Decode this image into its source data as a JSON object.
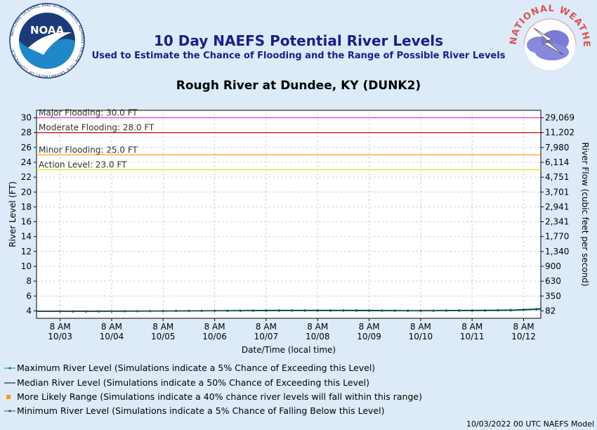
{
  "header": {
    "title": "10 Day NAEFS Potential River Levels",
    "subtitle": "Used to Estimate the Chance of Flooding and the Range of Possible River Levels",
    "station": "Rough River at Dundee, KY (DUNK2)",
    "noaa_logo_text": "NOAA",
    "noaa_ring_text": "NATIONAL OCEANIC AND ATMOSPHERIC ADMINISTRATION · U.S. DEPARTMENT OF COMMERCE",
    "nws_ring_text": "NATIONAL WEATHER SERVICE"
  },
  "colors": {
    "major": "#cc33cc",
    "moderate": "#cc0000",
    "minor": "#ff9900",
    "action": "#e6e600",
    "max_series": "#008b8b",
    "median_series": "#000000",
    "range_series": "#ff9900",
    "min_series": "#1f5a7a"
  },
  "chart_data": {
    "type": "line",
    "xlabel": "Date/Time (local time)",
    "ylabel": "River Level (FT)",
    "y2label": "River Flow (cubic feet per second)",
    "ylim": [
      3,
      31
    ],
    "yticks": [
      4,
      6,
      8,
      10,
      12,
      14,
      16,
      18,
      20,
      22,
      24,
      26,
      28,
      30
    ],
    "y2ticks": [
      {
        "stage": 4,
        "label": "82"
      },
      {
        "stage": 6,
        "label": "350"
      },
      {
        "stage": 8,
        "label": "630"
      },
      {
        "stage": 10,
        "label": "900"
      },
      {
        "stage": 12,
        "label": "1,340"
      },
      {
        "stage": 14,
        "label": "1,770"
      },
      {
        "stage": 16,
        "label": "2,341"
      },
      {
        "stage": 18,
        "label": "2,941"
      },
      {
        "stage": 20,
        "label": "3,701"
      },
      {
        "stage": 22,
        "label": "4,751"
      },
      {
        "stage": 24,
        "label": "6,114"
      },
      {
        "stage": 26,
        "label": "7,980"
      },
      {
        "stage": 28,
        "label": "11,202"
      },
      {
        "stage": 30,
        "label": "29,069"
      }
    ],
    "xlim_hours": [
      -3,
      232
    ],
    "xticks": [
      {
        "hour": 8,
        "time": "8 AM",
        "date": "10/03"
      },
      {
        "hour": 32,
        "time": "8 AM",
        "date": "10/04"
      },
      {
        "hour": 56,
        "time": "8 AM",
        "date": "10/05"
      },
      {
        "hour": 80,
        "time": "8 AM",
        "date": "10/06"
      },
      {
        "hour": 104,
        "time": "8 AM",
        "date": "10/07"
      },
      {
        "hour": 128,
        "time": "8 AM",
        "date": "10/08"
      },
      {
        "hour": 152,
        "time": "8 AM",
        "date": "10/09"
      },
      {
        "hour": 176,
        "time": "8 AM",
        "date": "10/10"
      },
      {
        "hour": 200,
        "time": "8 AM",
        "date": "10/11"
      },
      {
        "hour": 224,
        "time": "8 AM",
        "date": "10/12"
      }
    ],
    "thresholds": [
      {
        "key": "major",
        "label": "Major Flooding: 30.0 FT",
        "value": 30.0
      },
      {
        "key": "moderate",
        "label": "Moderate Flooding: 28.0 FT",
        "value": 28.0
      },
      {
        "key": "minor",
        "label": "Minor Flooding: 25.0 FT",
        "value": 25.0
      },
      {
        "key": "action",
        "label": "Action Level: 23.0 FT",
        "value": 23.0
      }
    ],
    "series": [
      {
        "key": "max",
        "name": "Maximum River Level (Simulations indicate a 5% Chance of Exceeding this Level)",
        "x": [
          -3,
          24,
          54,
          84,
          114,
          144,
          174,
          204,
          220,
          232
        ],
        "y": [
          3.95,
          3.95,
          4.0,
          4.05,
          4.1,
          4.1,
          4.05,
          4.1,
          4.15,
          4.3
        ]
      },
      {
        "key": "median",
        "name": "Median River Level (Simulations indicate a 50% Chance of Exceeding this Level)",
        "x": [
          -3,
          24,
          54,
          84,
          114,
          144,
          174,
          204,
          220,
          232
        ],
        "y": [
          3.95,
          3.95,
          3.98,
          4.02,
          4.05,
          4.05,
          4.02,
          4.05,
          4.1,
          4.25
        ]
      },
      {
        "key": "range",
        "name": "More Likely Range (Simulations indicate a 40% chance river levels will fall within this range)",
        "x": [],
        "y": []
      },
      {
        "key": "min",
        "name": "Minimum River Level (Simulations indicate a 5% Chance of Falling Below this Level)",
        "x": [
          -3,
          24,
          54,
          84,
          114,
          144,
          174,
          204,
          220,
          232
        ],
        "y": [
          3.9,
          3.9,
          3.95,
          3.98,
          4.0,
          4.0,
          3.98,
          4.0,
          4.05,
          4.2
        ]
      }
    ]
  },
  "footer": "10/03/2022 00 UTC NAEFS Model"
}
